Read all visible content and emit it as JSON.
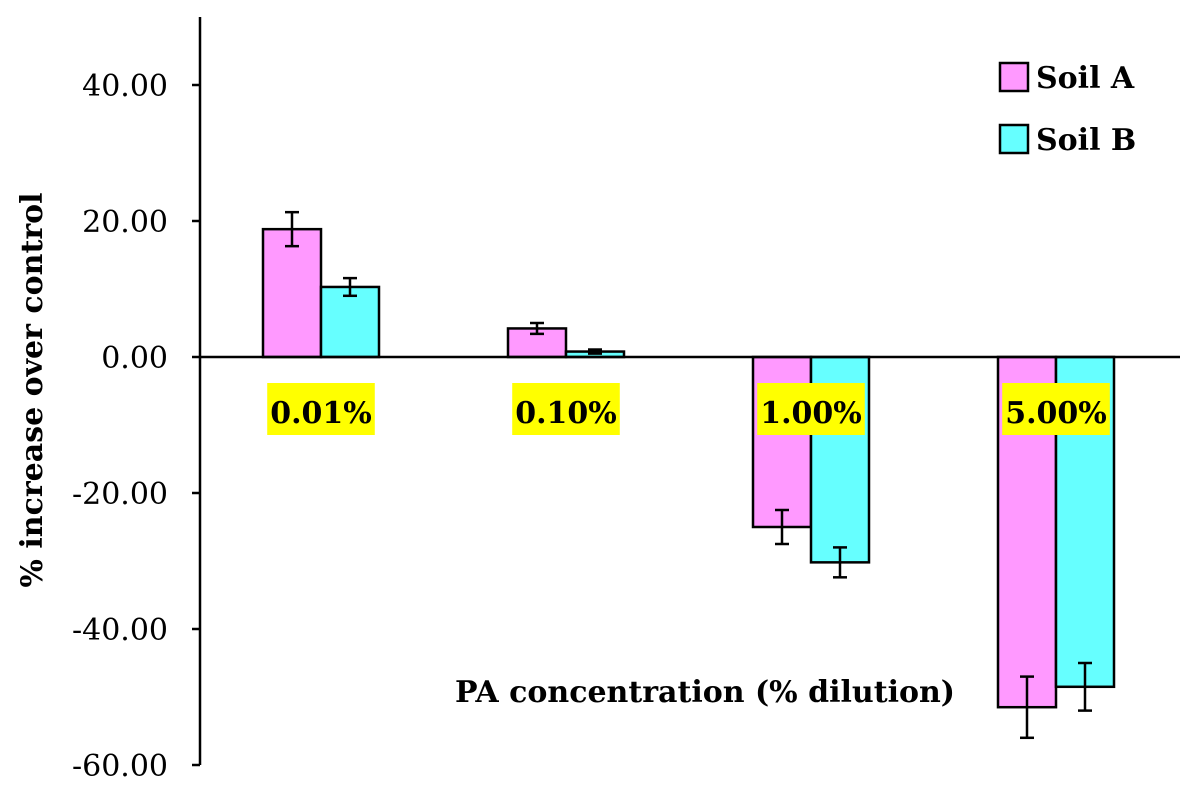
{
  "chart_data": {
    "type": "bar",
    "title": "",
    "xlabel": "PA concentration (% dilution)",
    "ylabel": "% increase over control",
    "categories": [
      "0.01%",
      "0.10%",
      "1.00%",
      "5.00%"
    ],
    "yticks": [
      "40.00",
      "20.00",
      "0.00",
      "-20.00",
      "-40.00",
      "-60.00"
    ],
    "ytick_values": [
      40,
      20,
      0,
      -20,
      -40,
      -60
    ],
    "ylim": [
      -60,
      50
    ],
    "grid": false,
    "legend_position": "top-right",
    "category_label_highlight": "#ffff00",
    "series": [
      {
        "name": "Soil A",
        "color": "#ff99ff",
        "values": [
          18.8,
          4.2,
          -25.0,
          -51.5
        ],
        "errors": [
          2.5,
          0.8,
          2.5,
          4.5
        ]
      },
      {
        "name": "Soil B",
        "color": "#66ffff",
        "values": [
          10.3,
          0.8,
          -30.2,
          -48.5
        ],
        "errors": [
          1.3,
          0.3,
          2.2,
          3.5
        ]
      }
    ]
  }
}
